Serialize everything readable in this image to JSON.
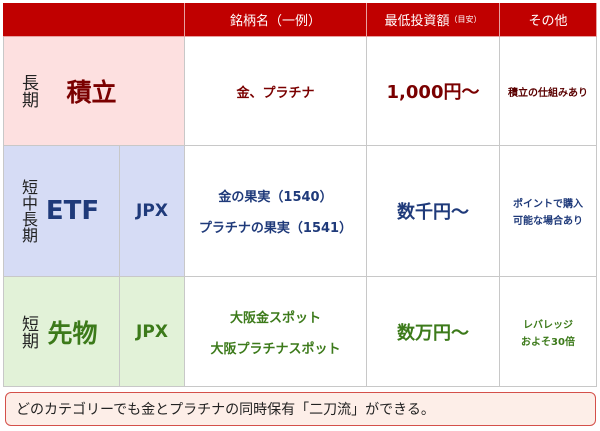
{
  "header": {
    "name": "銘柄名（一例）",
    "min": "最低投資額",
    "min_note": "（目安）",
    "other": "その他"
  },
  "rows": [
    {
      "period": "長期",
      "type": "積立",
      "exchange": "",
      "names": [
        "金、プラチナ"
      ],
      "min": "1,000円～",
      "other": [
        "積立の仕組みあり"
      ]
    },
    {
      "period": "短中長期",
      "type": "ETF",
      "exchange": "JPX",
      "names": [
        "金の果実（1540）",
        "プラチナの果実（1541）"
      ],
      "min": "数千円～",
      "other": [
        "ポイントで購入",
        "可能な場合あり"
      ]
    },
    {
      "period": "短期",
      "type": "先物",
      "exchange": "JPX",
      "names": [
        "大阪金スポット",
        "大阪プラチナスポット"
      ],
      "min": "数万円～",
      "other": [
        "レバレッジ",
        "およそ30倍"
      ]
    }
  ],
  "note": "どのカテゴリーでも金とプラチナの同時保有「二刀流」ができる。",
  "colors": {
    "header": "#c00000",
    "long": "#fde0e0",
    "mid": "#d6dcf5",
    "short": "#e2f2d8"
  }
}
